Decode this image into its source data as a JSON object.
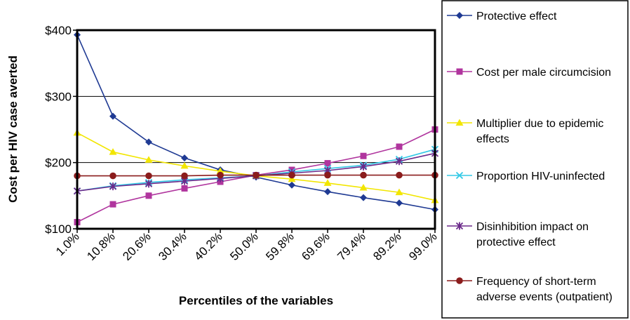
{
  "chart_data": {
    "type": "line",
    "title": "",
    "xlabel": "Percentiles of the variables",
    "ylabel": "Cost per HIV case averted",
    "categories": [
      "1.0%",
      "10.8%",
      "20.6%",
      "30.4%",
      "40.2%",
      "50.0%",
      "59.8%",
      "69.6%",
      "79.4%",
      "89.2%",
      "99.0%"
    ],
    "ylim": [
      100,
      400
    ],
    "yticks": [
      100,
      200,
      300,
      400
    ],
    "ytick_labels": [
      "$100",
      "$200",
      "$300",
      "$400"
    ],
    "grid": "horizontal",
    "legend_position": "right",
    "series": [
      {
        "name": "Protective effect",
        "color": "#1f3a93",
        "marker": "diamond",
        "values": [
          393,
          270,
          231,
          207,
          189,
          178,
          166,
          156,
          147,
          139,
          129
        ]
      },
      {
        "name": "Cost per male circumcision",
        "color": "#b0359e",
        "marker": "square",
        "values": [
          110,
          137,
          150,
          161,
          171,
          181,
          189,
          199,
          210,
          224,
          250
        ]
      },
      {
        "name": "Multiplier due to epidemic effects",
        "color": "#f2e600",
        "marker": "triangle",
        "values": [
          245,
          216,
          204,
          195,
          187,
          180,
          175,
          169,
          162,
          155,
          143
        ]
      },
      {
        "name": "Proportion HIV-uninfected",
        "color": "#33c9e6",
        "marker": "x",
        "values": [
          157,
          165,
          170,
          174,
          177,
          180,
          186,
          191,
          196,
          205,
          220
        ]
      },
      {
        "name": "Disinhibition impact on protective effect",
        "color": "#6b2a8a",
        "marker": "star",
        "values": [
          157,
          164,
          168,
          172,
          176,
          180,
          184,
          188,
          194,
          202,
          214
        ]
      },
      {
        "name": "Frequency of short-term adverse events (outpatient)",
        "color": "#8b1c1c",
        "marker": "circle",
        "values": [
          180,
          180,
          180,
          180,
          181,
          181,
          181,
          181,
          181,
          181,
          181
        ]
      }
    ]
  }
}
